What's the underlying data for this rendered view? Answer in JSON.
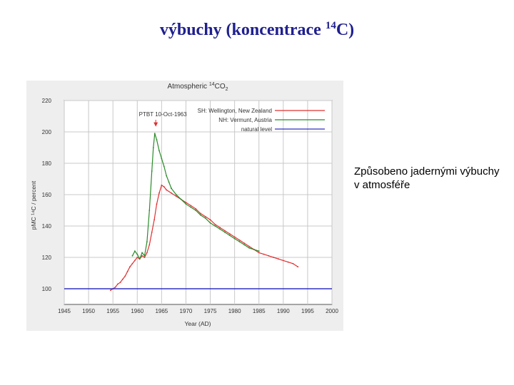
{
  "slide": {
    "title_text": "výbuchy (koncentrace ",
    "title_superscript": "14",
    "title_suffix": "C)",
    "note": "Způsobeno jadernými výbuchy v atmosféře"
  },
  "chart_data": {
    "type": "line",
    "title_prefix": "Atmospheric ",
    "title_superscript": "14",
    "title_suffix": "CO",
    "title_subscript": "2",
    "xlabel": "Year (AD)",
    "ylabel": "pMC ¹⁴C / percent",
    "xlim": [
      1945,
      2000
    ],
    "ylim": [
      90,
      220
    ],
    "x_ticks": [
      1945,
      1950,
      1955,
      1960,
      1965,
      1970,
      1975,
      1980,
      1985,
      1990,
      1995,
      2000
    ],
    "y_ticks": [
      100,
      120,
      140,
      160,
      180,
      200,
      220
    ],
    "grid": true,
    "legend_position": "top-right",
    "annotation": {
      "text": "PTBT 10-Oct-1963",
      "x": 1963.8,
      "y": 202
    },
    "series": [
      {
        "name": "SH: Wellington, New Zealand",
        "color": "#e03030",
        "x": [
          1954.5,
          1955,
          1955.5,
          1956,
          1956.5,
          1957,
          1957.5,
          1958,
          1958.5,
          1959,
          1959.5,
          1960,
          1960.5,
          1961,
          1961.5,
          1962,
          1962.5,
          1963,
          1963.5,
          1964,
          1964.5,
          1965,
          1965.5,
          1966,
          1967,
          1968,
          1969,
          1970,
          1971,
          1972,
          1973,
          1974,
          1975,
          1976,
          1977,
          1978,
          1979,
          1980,
          1981,
          1982,
          1983,
          1984,
          1985,
          1986,
          1987,
          1988,
          1989,
          1990,
          1991,
          1992,
          1993
        ],
        "y": [
          99,
          100,
          101,
          103,
          104,
          106,
          108,
          111,
          114,
          116,
          118,
          120,
          119,
          121,
          120,
          123,
          128,
          136,
          144,
          154,
          161,
          166,
          165,
          163,
          161,
          159,
          157,
          155,
          153,
          151,
          148,
          146,
          144,
          141,
          139,
          137,
          135,
          133,
          131,
          129,
          127,
          125,
          123,
          122,
          121,
          120,
          119,
          118,
          117,
          116,
          114
        ]
      },
      {
        "name": "NH: Vermunt, Austria",
        "color": "#2a8a2a",
        "x": [
          1959,
          1959.5,
          1960,
          1960.5,
          1961,
          1961.5,
          1962,
          1962.5,
          1963,
          1963.3,
          1963.6,
          1964,
          1964.5,
          1965,
          1965.5,
          1966,
          1966.5,
          1967,
          1968,
          1969,
          1970,
          1971,
          1972,
          1973,
          1974,
          1975,
          1976,
          1977,
          1978,
          1979,
          1980,
          1981,
          1982,
          1983,
          1984,
          1985
        ],
        "y": [
          121,
          124,
          122,
          119,
          123,
          121,
          130,
          150,
          175,
          190,
          199,
          195,
          188,
          183,
          178,
          172,
          168,
          164,
          160,
          157,
          154,
          152,
          150,
          147,
          145,
          142,
          140,
          138,
          136,
          134,
          132,
          130,
          128,
          126,
          125,
          124
        ]
      },
      {
        "name": "natural level",
        "color": "#3030c0",
        "x": [
          1945,
          2000
        ],
        "y": [
          100,
          100
        ]
      }
    ]
  }
}
